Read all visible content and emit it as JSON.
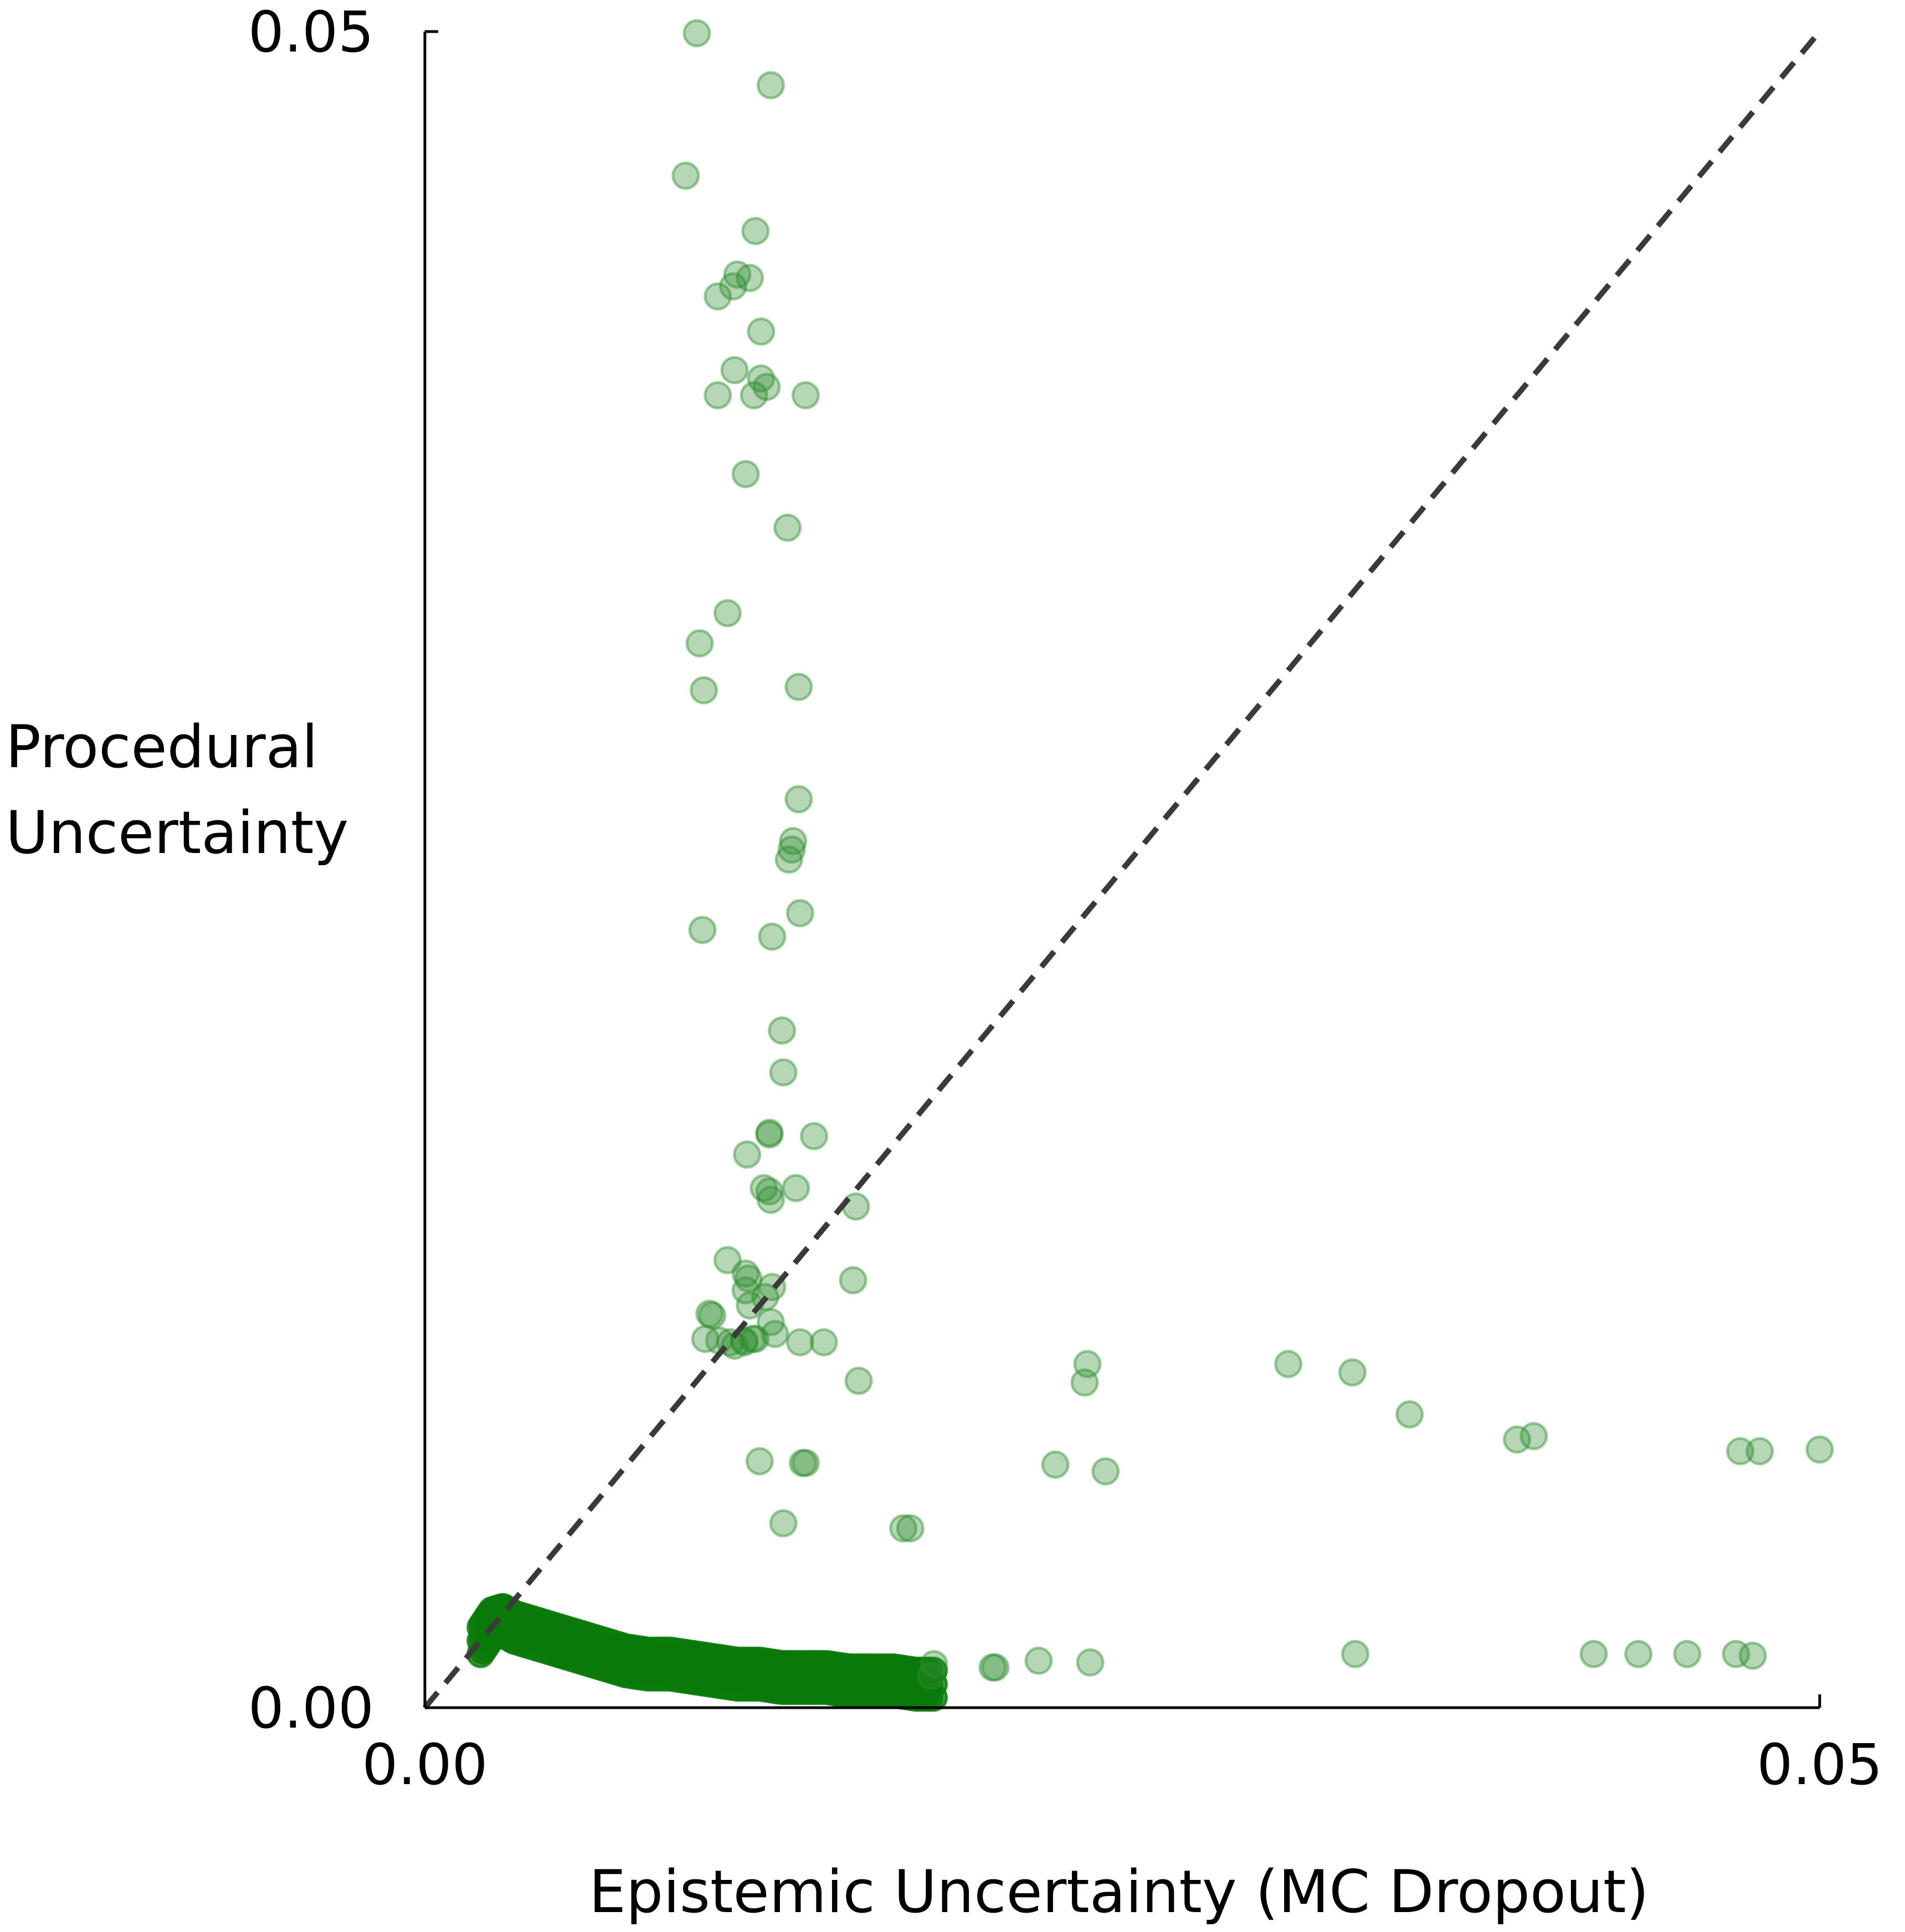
{
  "chart_data": {
    "type": "scatter",
    "title": "",
    "xlabel": "Epistemic Uncertainty (MC Dropout)",
    "ylabel_lines": [
      "Procedural",
      "Uncertainty"
    ],
    "xlim": [
      0,
      0.05
    ],
    "ylim": [
      0,
      0.05
    ],
    "x_ticks": [
      {
        "value": 0,
        "label": "0.00"
      },
      {
        "value": 0.05,
        "label": "0.05"
      }
    ],
    "y_ticks": [
      {
        "value": 0,
        "label": "0.00"
      },
      {
        "value": 0.05,
        "label": "0.05"
      }
    ],
    "grid": false,
    "reference_line": {
      "type": "y=x",
      "style": "dashed",
      "color": "#3a3a3a"
    },
    "marker_color": "#2e8b2e",
    "dense_marker_color": "#0a7a0a",
    "series": [
      {
        "name": "samples",
        "points": [
          [
            0.00975,
            0.04995
          ],
          [
            0.0124,
            0.0484
          ],
          [
            0.00935,
            0.0457
          ],
          [
            0.01185,
            0.04405
          ],
          [
            0.0112,
            0.04275
          ],
          [
            0.01165,
            0.04265
          ],
          [
            0.01105,
            0.0424
          ],
          [
            0.0105,
            0.0421
          ],
          [
            0.01205,
            0.04105
          ],
          [
            0.0111,
            0.0399
          ],
          [
            0.01205,
            0.03965
          ],
          [
            0.01225,
            0.0394
          ],
          [
            0.0105,
            0.03915
          ],
          [
            0.0118,
            0.03915
          ],
          [
            0.01365,
            0.03915
          ],
          [
            0.0115,
            0.0368
          ],
          [
            0.013,
            0.0352
          ],
          [
            0.01085,
            0.03265
          ],
          [
            0.00985,
            0.03175
          ],
          [
            0.0134,
            0.03045
          ],
          [
            0.01,
            0.03035
          ],
          [
            0.0134,
            0.0271
          ],
          [
            0.0132,
            0.02585
          ],
          [
            0.01315,
            0.0256
          ],
          [
            0.01305,
            0.0253
          ],
          [
            0.01345,
            0.0237
          ],
          [
            0.00995,
            0.0232
          ],
          [
            0.01245,
            0.023
          ],
          [
            0.0128,
            0.0202
          ],
          [
            0.01285,
            0.01895
          ],
          [
            0.01235,
            0.01715
          ],
          [
            0.01235,
            0.0171
          ],
          [
            0.01395,
            0.01705
          ],
          [
            0.01155,
            0.0165
          ],
          [
            0.01215,
            0.0155
          ],
          [
            0.01235,
            0.0154
          ],
          [
            0.0133,
            0.0155
          ],
          [
            0.0124,
            0.01515
          ],
          [
            0.01545,
            0.01495
          ],
          [
            0.01085,
            0.01335
          ],
          [
            0.0115,
            0.01295
          ],
          [
            0.0116,
            0.0128
          ],
          [
            0.01245,
            0.01255
          ],
          [
            0.01535,
            0.01275
          ],
          [
            0.0115,
            0.01245
          ],
          [
            0.0122,
            0.01225
          ],
          [
            0.01165,
            0.012
          ],
          [
            0.0102,
            0.01175
          ],
          [
            0.0103,
            0.0117
          ],
          [
            0.0111,
            0.0108
          ],
          [
            0.01175,
            0.011
          ],
          [
            0.0124,
            0.0115
          ],
          [
            0.01005,
            0.011
          ],
          [
            0.01055,
            0.01095
          ],
          [
            0.01145,
            0.01095
          ],
          [
            0.01185,
            0.011
          ],
          [
            0.01255,
            0.01115
          ],
          [
            0.0143,
            0.0109
          ],
          [
            0.01145,
            0.0109
          ],
          [
            0.01095,
            0.0109
          ],
          [
            0.01345,
            0.0109
          ],
          [
            0.01555,
            0.00975
          ],
          [
            0.02375,
            0.01025
          ],
          [
            0.02365,
            0.0097
          ],
          [
            0.03095,
            0.01025
          ],
          [
            0.03325,
            0.01
          ],
          [
            0.0353,
            0.00875
          ],
          [
            0.03915,
            0.008
          ],
          [
            0.03975,
            0.0081
          ],
          [
            0.04715,
            0.00765
          ],
          [
            0.04785,
            0.00765
          ],
          [
            0.05,
            0.0077
          ],
          [
            0.012,
            0.00735
          ],
          [
            0.01365,
            0.0073
          ],
          [
            0.01355,
            0.0073
          ],
          [
            0.0226,
            0.00725
          ],
          [
            0.0244,
            0.00705
          ],
          [
            0.01285,
            0.0055
          ],
          [
            0.01715,
            0.00535
          ],
          [
            0.0174,
            0.00535
          ],
          [
            0.03335,
            0.0016
          ],
          [
            0.0419,
            0.0016
          ],
          [
            0.0435,
            0.0016
          ],
          [
            0.04525,
            0.0016
          ],
          [
            0.047,
            0.0016
          ],
          [
            0.0476,
            0.00155
          ],
          [
            0.022,
            0.0014
          ],
          [
            0.02385,
            0.00135
          ],
          [
            0.02035,
            0.0012
          ],
          [
            0.02045,
            0.0012
          ],
          [
            0.01825,
            0.0013
          ],
          [
            0.01815,
            0.00095
          ]
        ],
        "dense_band": [
          [
            0.002,
            0.002
          ],
          [
            0.0024,
            0.0025
          ],
          [
            0.0028,
            0.0026
          ],
          [
            0.0032,
            0.0024
          ],
          [
            0.004,
            0.0022
          ],
          [
            0.0048,
            0.002
          ],
          [
            0.0056,
            0.0018
          ],
          [
            0.0064,
            0.0016
          ],
          [
            0.0072,
            0.0014
          ],
          [
            0.008,
            0.0013
          ],
          [
            0.0088,
            0.0013
          ],
          [
            0.0096,
            0.0012
          ],
          [
            0.0104,
            0.0011
          ],
          [
            0.0112,
            0.001
          ],
          [
            0.012,
            0.001
          ],
          [
            0.0128,
            0.0009
          ],
          [
            0.0136,
            0.0009
          ],
          [
            0.0144,
            0.0009
          ],
          [
            0.0152,
            0.0008
          ],
          [
            0.016,
            0.0008
          ],
          [
            0.0168,
            0.0008
          ],
          [
            0.0176,
            0.0007
          ],
          [
            0.0184,
            0.0007
          ]
        ]
      }
    ]
  }
}
